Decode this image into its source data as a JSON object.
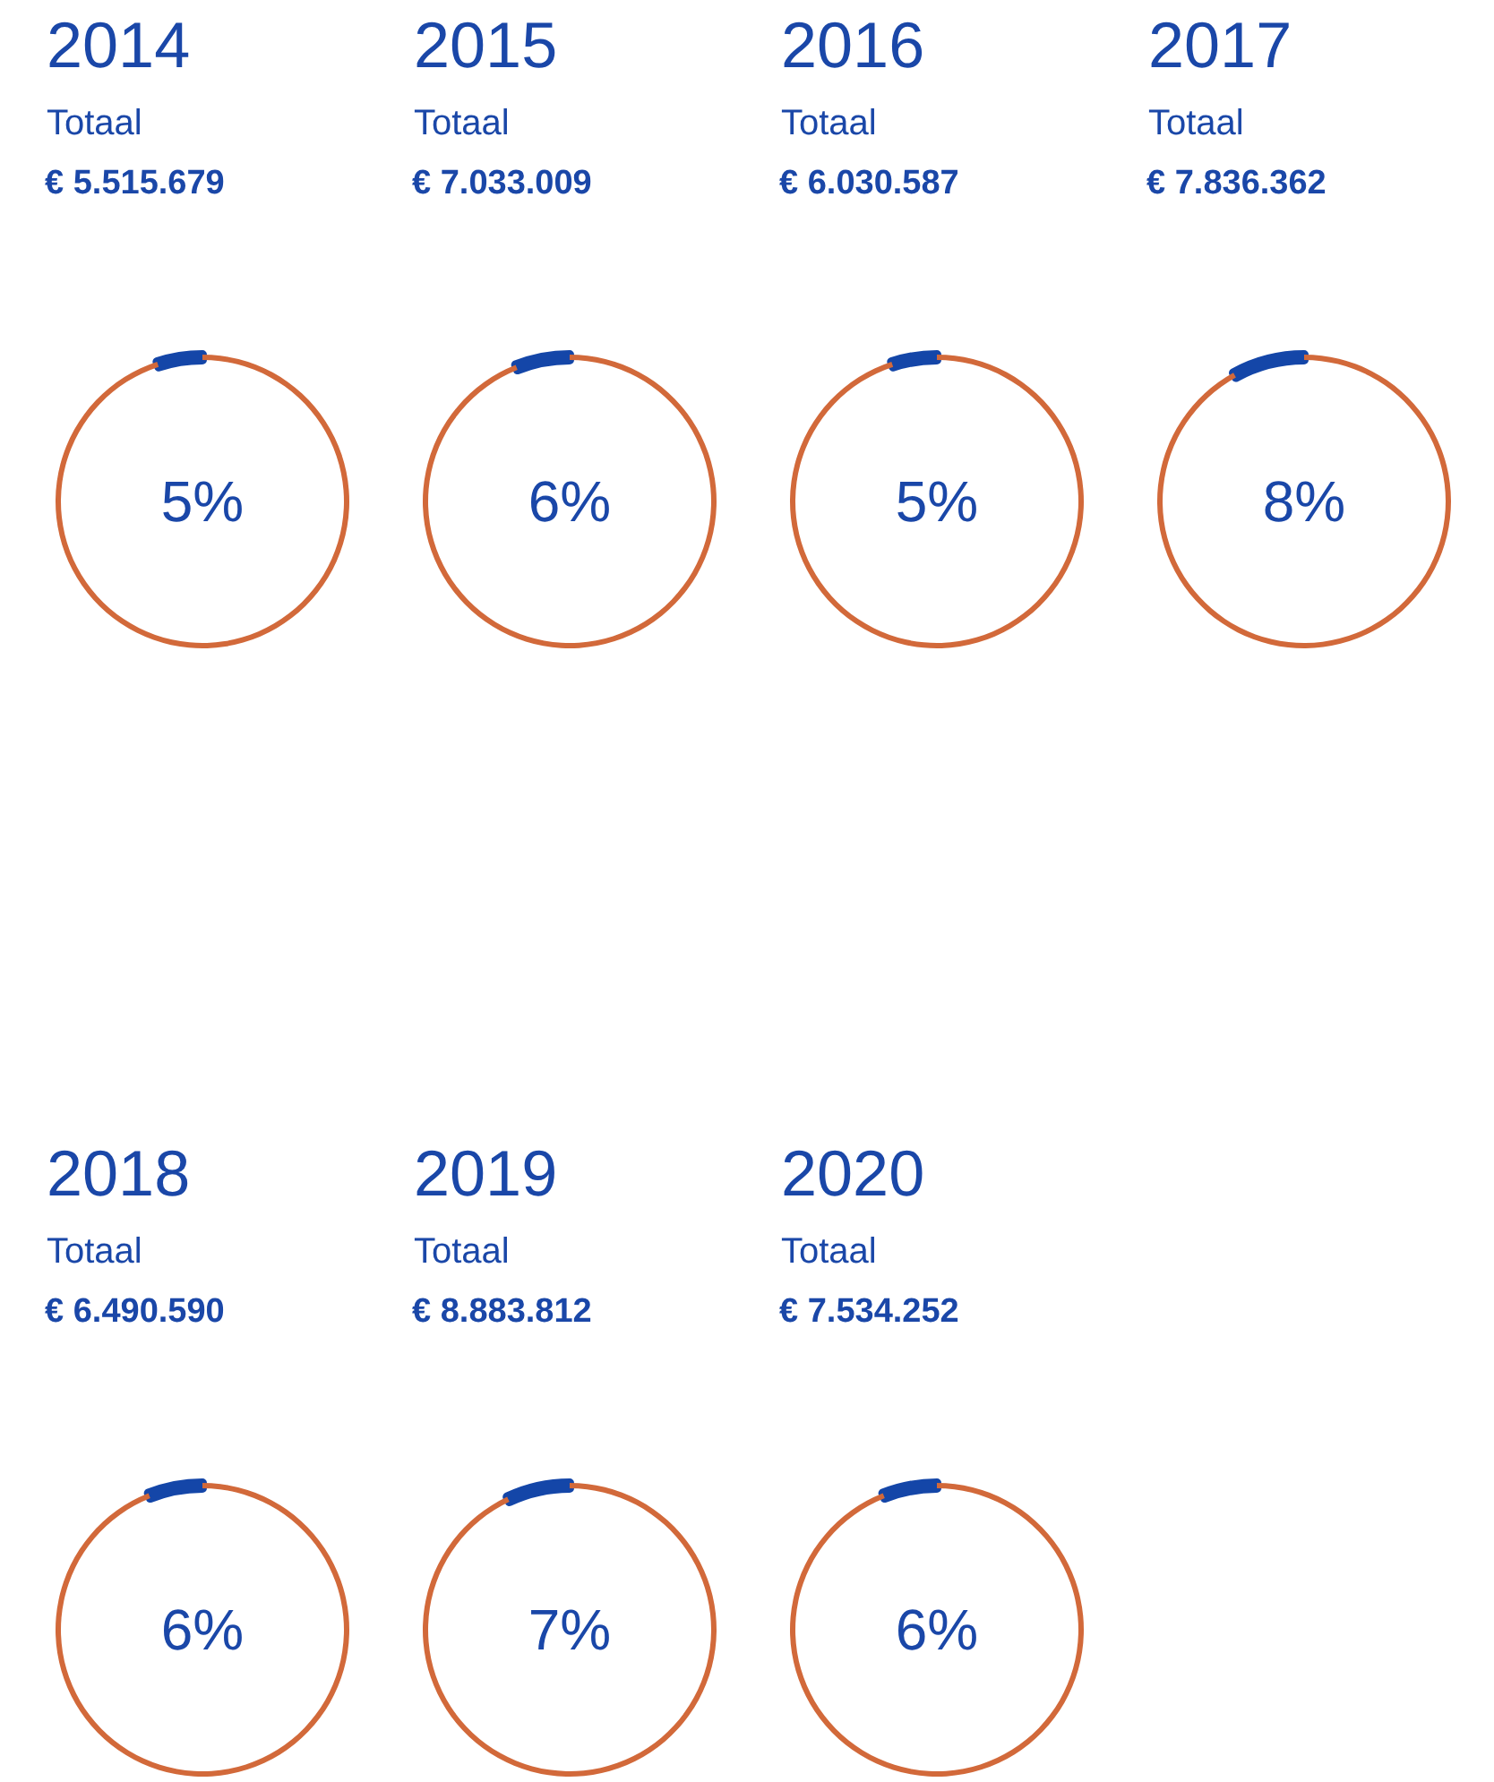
{
  "chart_data": [
    {
      "type": "donut",
      "title": "2014",
      "subtitle": "Totaal",
      "annotations": [
        "€ 5.515.679",
        "5%"
      ],
      "categories": [
        null,
        null
      ],
      "values": [
        5,
        95
      ],
      "colors": [
        "#1446a8",
        "#d2693a"
      ]
    },
    {
      "type": "donut",
      "title": "2015",
      "subtitle": "Totaal",
      "annotations": [
        "€ 7.033.009",
        "6%"
      ],
      "categories": [
        null,
        null
      ],
      "values": [
        6,
        94
      ],
      "colors": [
        "#1446a8",
        "#d2693a"
      ]
    },
    {
      "type": "donut",
      "title": "2016",
      "subtitle": "Totaal",
      "annotations": [
        "€ 6.030.587",
        "5%"
      ],
      "categories": [
        null,
        null
      ],
      "values": [
        5,
        95
      ],
      "colors": [
        "#1446a8",
        "#d2693a"
      ]
    },
    {
      "type": "donut",
      "title": "2017",
      "subtitle": "Totaal",
      "annotations": [
        "€ 7.836.362",
        "8%"
      ],
      "categories": [
        null,
        null
      ],
      "values": [
        8,
        92
      ],
      "colors": [
        "#1446a8",
        "#d2693a"
      ]
    },
    {
      "type": "donut",
      "title": "2018",
      "subtitle": "Totaal",
      "annotations": [
        "€ 6.490.590",
        "6%"
      ],
      "categories": [
        null,
        null
      ],
      "values": [
        6,
        94
      ],
      "colors": [
        "#1446a8",
        "#d2693a"
      ]
    },
    {
      "type": "donut",
      "title": "2019",
      "subtitle": "Totaal",
      "annotations": [
        "€ 8.883.812",
        "7%"
      ],
      "categories": [
        null,
        null
      ],
      "values": [
        7,
        93
      ],
      "colors": [
        "#1446a8",
        "#d2693a"
      ]
    },
    {
      "type": "donut",
      "title": "2020",
      "subtitle": "Totaal",
      "annotations": [
        "€ 7.534.252",
        "6%"
      ],
      "categories": [
        null,
        null
      ],
      "values": [
        6,
        94
      ],
      "colors": [
        "#1446a8",
        "#d2693a"
      ]
    }
  ]
}
